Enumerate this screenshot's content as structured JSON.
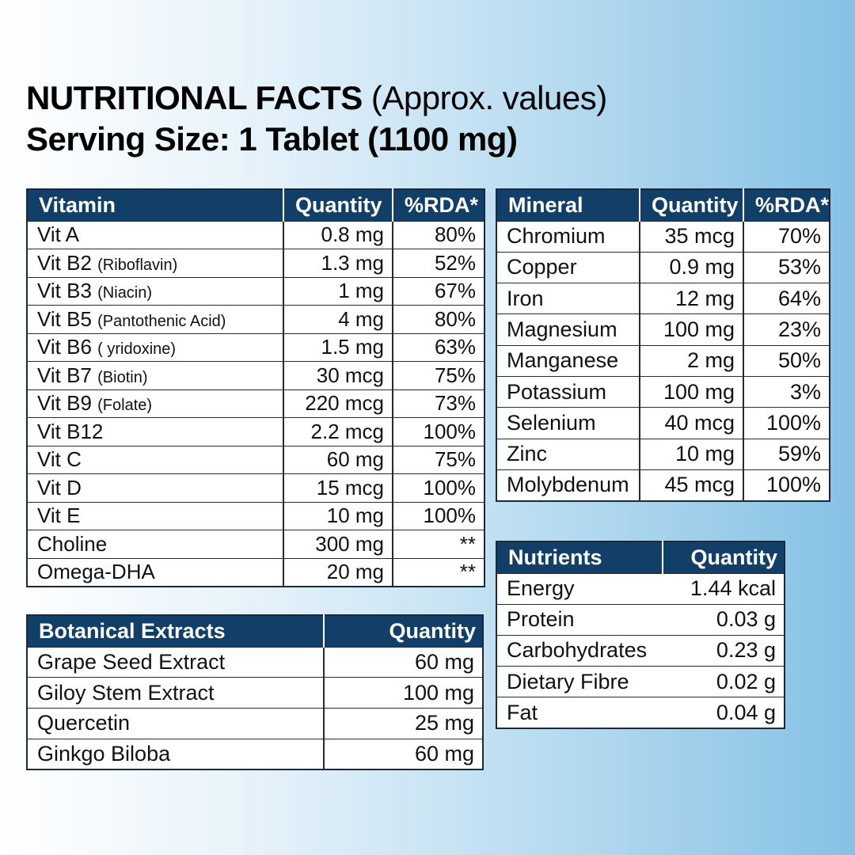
{
  "header": {
    "title": "NUTRITIONAL FACTS",
    "title_note": "(Approx. values)",
    "serving": "Serving Size: 1 Tablet (1100 mg)"
  },
  "vitamins": {
    "columns": [
      "Vitamin",
      "Quantity",
      "%RDA*"
    ],
    "rows": [
      {
        "name": "Vit A",
        "quantity": "0.8 mg",
        "rda": "80%"
      },
      {
        "name": "Vit B2",
        "note": "(Riboflavin)",
        "quantity": "1.3 mg",
        "rda": "52%"
      },
      {
        "name": "Vit B3",
        "note": "(Niacin)",
        "quantity": "1 mg",
        "rda": "67%"
      },
      {
        "name": "Vit B5",
        "note": "(Pantothenic Acid)",
        "quantity": "4 mg",
        "rda": "80%"
      },
      {
        "name": "Vit B6",
        "note": "( yridoxine)",
        "quantity": "1.5 mg",
        "rda": "63%"
      },
      {
        "name": "Vit B7",
        "note": "(Biotin)",
        "quantity": "30 mcg",
        "rda": "75%"
      },
      {
        "name": "Vit B9",
        "note": "(Folate)",
        "quantity": "220 mcg",
        "rda": "73%"
      },
      {
        "name": "Vit B12",
        "quantity": "2.2 mcg",
        "rda": "100%"
      },
      {
        "name": "Vit C",
        "quantity": "60 mg",
        "rda": "75%"
      },
      {
        "name": "Vit D",
        "quantity": "15 mcg",
        "rda": "100%"
      },
      {
        "name": "Vit E",
        "quantity": "10 mg",
        "rda": "100%"
      },
      {
        "name": "Choline",
        "quantity": "300 mg",
        "rda": "**"
      },
      {
        "name": "Omega-DHA",
        "quantity": "20 mg",
        "rda": "**"
      }
    ]
  },
  "minerals": {
    "columns": [
      "Mineral",
      "Quantity",
      "%RDA*"
    ],
    "rows": [
      {
        "name": "Chromium",
        "quantity": "35 mcg",
        "rda": "70%"
      },
      {
        "name": "Copper",
        "quantity": "0.9 mg",
        "rda": "53%"
      },
      {
        "name": "Iron",
        "quantity": "12 mg",
        "rda": "64%"
      },
      {
        "name": "Magnesium",
        "quantity": "100 mg",
        "rda": "23%"
      },
      {
        "name": "Manganese",
        "quantity": "2 mg",
        "rda": "50%"
      },
      {
        "name": "Potassium",
        "quantity": "100 mg",
        "rda": "3%"
      },
      {
        "name": "Selenium",
        "quantity": "40 mcg",
        "rda": "100%"
      },
      {
        "name": "Zinc",
        "quantity": "10 mg",
        "rda": "59%"
      },
      {
        "name": "Molybdenum",
        "quantity": "45 mcg",
        "rda": "100%"
      }
    ]
  },
  "nutrients": {
    "columns": [
      "Nutrients",
      "Quantity"
    ],
    "rows": [
      {
        "name": "Energy",
        "quantity": "1.44 kcal"
      },
      {
        "name": "Protein",
        "quantity": "0.03 g"
      },
      {
        "name": "Carbohydrates",
        "quantity": "0.23 g"
      },
      {
        "name": "Dietary Fibre",
        "quantity": "0.02 g"
      },
      {
        "name": "Fat",
        "quantity": "0.04 g"
      }
    ]
  },
  "botanicals": {
    "columns": [
      "Botanical Extracts",
      "Quantity"
    ],
    "rows": [
      {
        "name": "Grape Seed Extract",
        "quantity": "60 mg"
      },
      {
        "name": "Giloy Stem Extract",
        "quantity": "100 mg"
      },
      {
        "name": "Quercetin",
        "quantity": "25 mg"
      },
      {
        "name": "Ginkgo Biloba",
        "quantity": "60 mg"
      }
    ]
  }
}
